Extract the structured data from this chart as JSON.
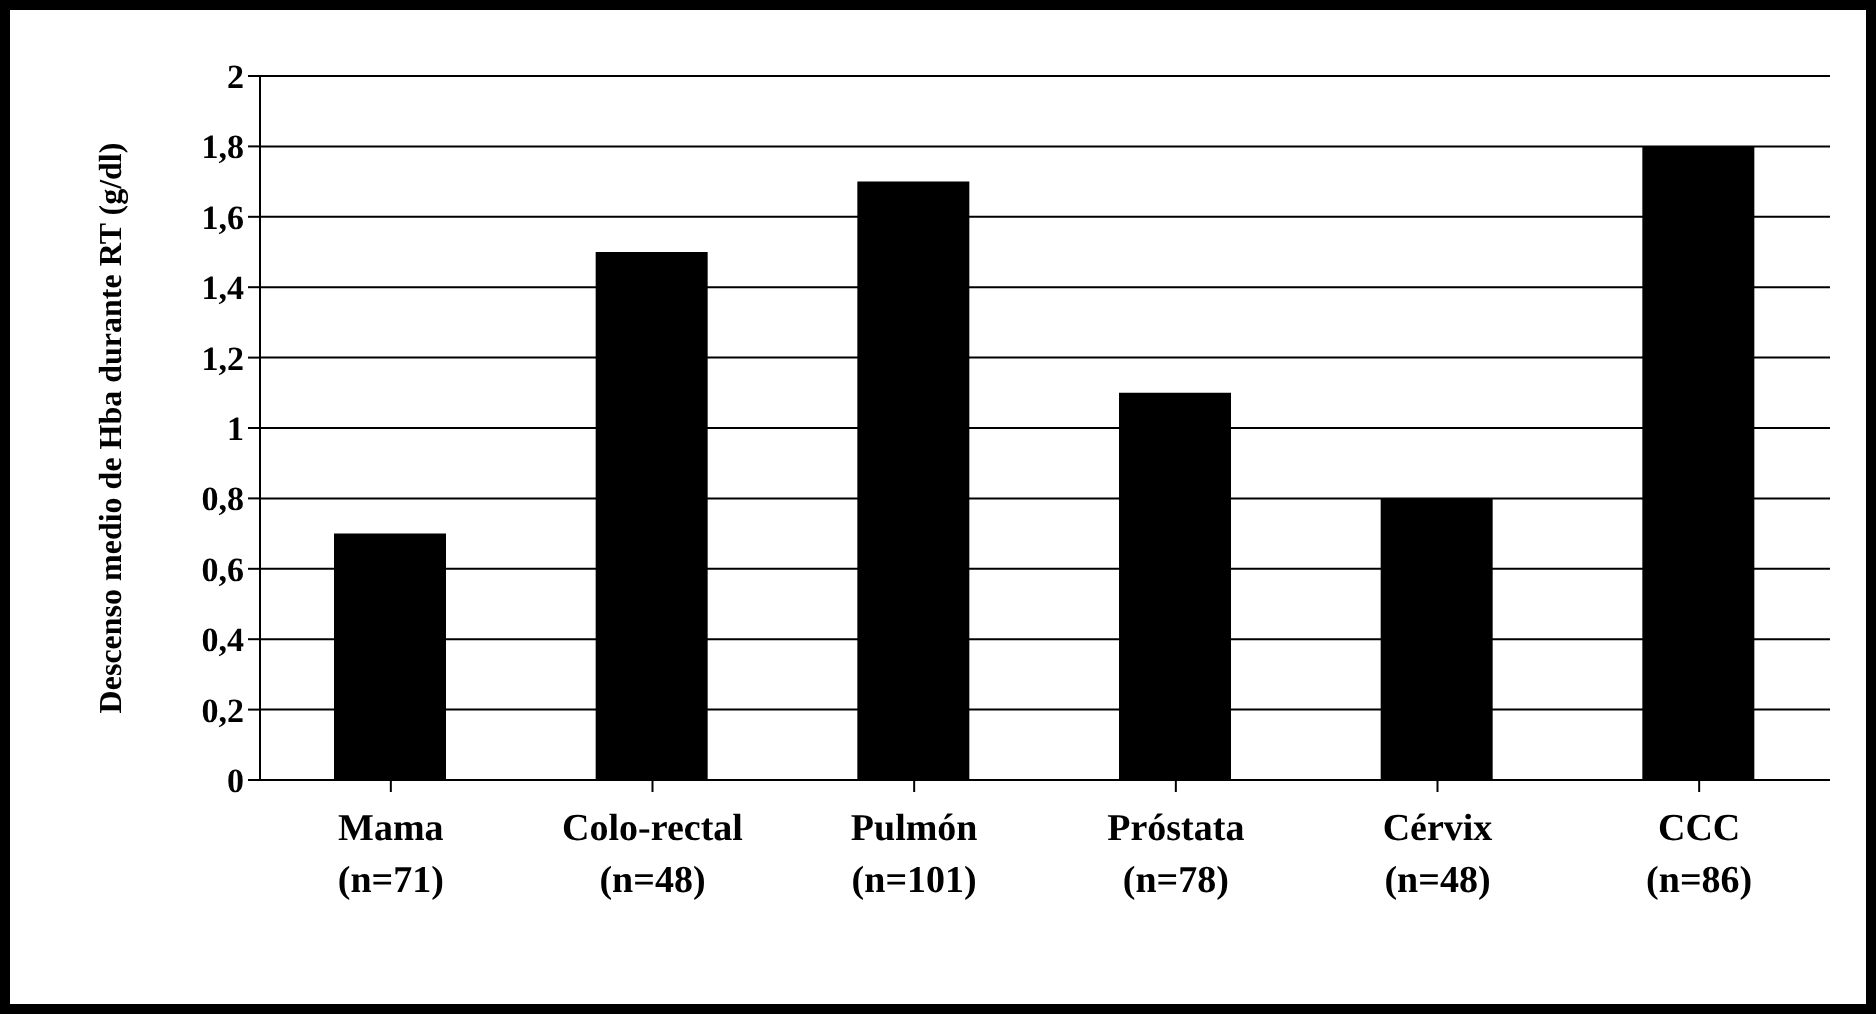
{
  "chart_data": {
    "type": "bar",
    "ylabel": "Descenso medio de Hba durante RT (g/dl)",
    "categories": [
      "Mama\n(n=71)",
      "Colo-rectal\n(n=48)",
      "Pulmón\n(n=101)",
      "Próstata\n(n=78)",
      "Cérvix\n(n=48)",
      "CCC\n(n=86)"
    ],
    "values": [
      0.7,
      1.5,
      1.7,
      1.1,
      0.8,
      1.8
    ],
    "color": "#000000",
    "ylim": [
      0,
      2
    ],
    "yticks": [
      0,
      {
        "value": 0.2,
        "label": "0,2"
      },
      {
        "value": 0.4,
        "label": "0,4"
      },
      {
        "value": 0.6,
        "label": "0,6"
      },
      {
        "value": 0.8,
        "label": "0,8"
      },
      1,
      {
        "value": 1.2,
        "label": "1,2"
      },
      {
        "value": 1.4,
        "label": "1,4"
      },
      {
        "value": 1.6,
        "label": "1,6"
      },
      {
        "value": 1.8,
        "label": "1,8"
      },
      2
    ],
    "grid": "y"
  }
}
